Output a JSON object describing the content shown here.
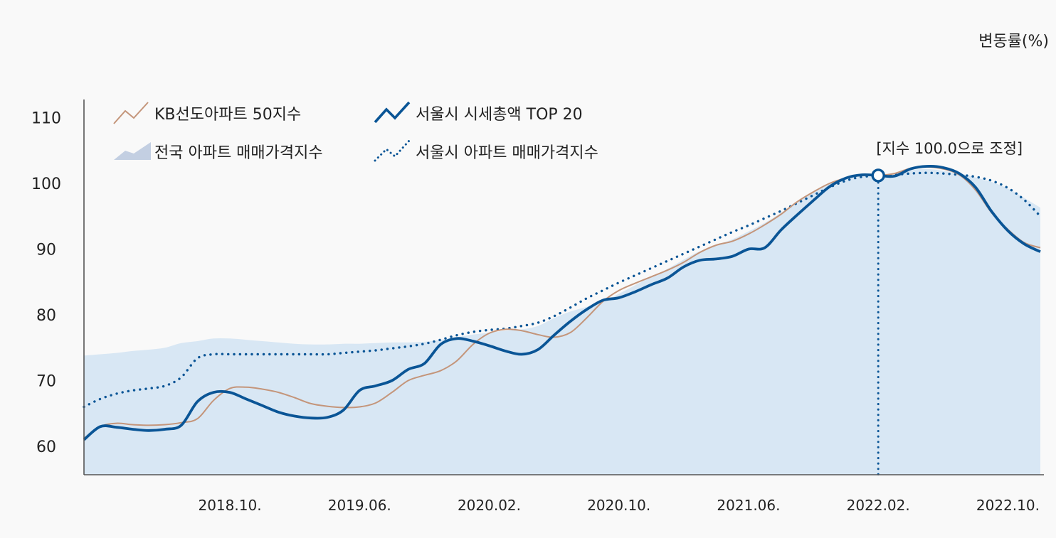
{
  "unit_label": "변동률(%)",
  "annotation": "[지수 100.0으로 조정]",
  "chart_data": {
    "type": "line",
    "x_tick_labels": [
      "2018.10.",
      "2019.06.",
      "2020.02.",
      "2020.10.",
      "2021.06.",
      "2022.02.",
      "2022.10."
    ],
    "y_ticks": [
      60,
      70,
      80,
      90,
      100,
      110
    ],
    "ylim": [
      55,
      112
    ],
    "x_range_months": [
      "2018.01.",
      "2022.12."
    ],
    "legend_position": "top-left",
    "colors": {
      "kb50": "#c4957a",
      "top20": "#0a5596",
      "national_area": "#d8e7f4",
      "seoul_dotted": "#0a5596",
      "axis": "#555555"
    },
    "series": [
      {
        "name": "KB선도아파트 50지수",
        "style": "thin-line",
        "x": [
          0,
          1,
          2,
          3,
          4,
          5,
          6,
          7,
          8,
          9,
          10,
          11,
          12,
          13,
          14,
          15,
          16,
          17,
          18,
          19,
          20,
          21,
          22,
          23,
          24,
          25,
          26,
          27,
          28,
          29,
          30,
          31,
          32,
          33,
          34,
          35,
          36,
          37,
          38,
          39,
          40,
          41,
          42,
          43,
          44,
          45,
          46,
          47,
          48,
          49,
          50,
          51,
          52,
          53,
          54,
          55,
          56,
          57,
          58,
          59
        ],
        "values": [
          61.2,
          63,
          63.5,
          63.3,
          63.2,
          63.3,
          63.6,
          64.2,
          67,
          68.8,
          69,
          68.7,
          68.2,
          67.4,
          66.5,
          66.1,
          65.9,
          66,
          66.6,
          68.2,
          70,
          70.8,
          71.5,
          73,
          75.5,
          77.2,
          77.8,
          77.6,
          77,
          76.6,
          77.3,
          79.5,
          82,
          83.7,
          84.8,
          85.8,
          86.8,
          88,
          89.5,
          90.6,
          91.2,
          92.3,
          93.7,
          95.3,
          97.2,
          98.7,
          100,
          100.8,
          101.2,
          101.2,
          101.5,
          102.3,
          102.5,
          102.2,
          101.3,
          99,
          95.5,
          93,
          91,
          90.2
        ]
      },
      {
        "name": "서울시 시세총액 TOP 20",
        "style": "thick-line",
        "x": [
          0,
          1,
          2,
          3,
          4,
          5,
          6,
          7,
          8,
          9,
          10,
          11,
          12,
          13,
          14,
          15,
          16,
          17,
          18,
          19,
          20,
          21,
          22,
          23,
          24,
          25,
          26,
          27,
          28,
          29,
          30,
          31,
          32,
          33,
          34,
          35,
          36,
          37,
          38,
          39,
          40,
          41,
          42,
          43,
          44,
          45,
          46,
          47,
          48,
          49,
          50,
          51,
          52,
          53,
          54,
          55,
          56,
          57,
          58,
          59
        ],
        "values": [
          61,
          63,
          62.9,
          62.6,
          62.4,
          62.6,
          63.2,
          66.8,
          68.2,
          68.2,
          67.2,
          66.2,
          65.2,
          64.6,
          64.3,
          64.4,
          65.5,
          68.5,
          69.2,
          70,
          71.7,
          72.6,
          75.5,
          76.4,
          76,
          75.3,
          74.5,
          74,
          74.7,
          76.9,
          79,
          80.8,
          82.2,
          82.6,
          83.5,
          84.6,
          85.6,
          87.3,
          88.3,
          88.5,
          88.9,
          90,
          90.2,
          92.9,
          95.2,
          97.4,
          99.5,
          100.8,
          101.3,
          101.2,
          101.1,
          102.2,
          102.6,
          102.4,
          101.5,
          99.4,
          95.7,
          92.8,
          90.8,
          89.6
        ]
      },
      {
        "name": "전국 아파트 매매가격지수",
        "style": "filled-area",
        "x": [
          0,
          1,
          2,
          3,
          4,
          5,
          6,
          7,
          8,
          9,
          10,
          11,
          12,
          13,
          14,
          15,
          16,
          17,
          18,
          19,
          20,
          21,
          22,
          23,
          24,
          25,
          26,
          27,
          28,
          29,
          30,
          31,
          32,
          33,
          34,
          35,
          36,
          37,
          38,
          39,
          40,
          41,
          42,
          43,
          44,
          45,
          46,
          47,
          48,
          49,
          50,
          51,
          52,
          53,
          54,
          55,
          56,
          57,
          58,
          59
        ],
        "values": [
          73.8,
          74,
          74.2,
          74.5,
          74.7,
          75,
          75.7,
          76,
          76.4,
          76.4,
          76.2,
          76,
          75.8,
          75.6,
          75.5,
          75.5,
          75.6,
          75.6,
          75.7,
          75.8,
          75.8,
          75.9,
          76.2,
          76.6,
          77,
          77.3,
          77.6,
          77.8,
          78.3,
          79.5,
          80.5,
          81.2,
          82,
          83.2,
          84.5,
          85.8,
          87,
          88.4,
          89.7,
          90.6,
          91.5,
          92.7,
          94,
          95.5,
          97.2,
          98.8,
          100,
          100.8,
          101.3,
          101.2,
          101.6,
          102,
          102.2,
          101.9,
          101.5,
          100.9,
          100.2,
          99.2,
          97.8,
          96.3
        ]
      },
      {
        "name": "서울시 아파트 매매가격지수",
        "style": "dotted-line",
        "x": [
          0,
          1,
          2,
          3,
          4,
          5,
          6,
          7,
          8,
          9,
          10,
          11,
          12,
          13,
          14,
          15,
          16,
          17,
          18,
          19,
          20,
          21,
          22,
          23,
          24,
          25,
          26,
          27,
          28,
          29,
          30,
          31,
          32,
          33,
          34,
          35,
          36,
          37,
          38,
          39,
          40,
          41,
          42,
          43,
          44,
          45,
          46,
          47,
          48,
          49,
          50,
          51,
          52,
          53,
          54,
          55,
          56,
          57,
          58,
          59
        ],
        "values": [
          66,
          67.2,
          68,
          68.5,
          68.8,
          69.2,
          70.5,
          73.4,
          74,
          74,
          74,
          74,
          74,
          74,
          74,
          74,
          74.2,
          74.4,
          74.6,
          74.9,
          75.2,
          75.6,
          76.2,
          76.9,
          77.4,
          77.7,
          77.9,
          78.3,
          78.8,
          79.8,
          81.1,
          82.5,
          83.7,
          84.9,
          86,
          87.1,
          88.2,
          89.3,
          90.4,
          91.5,
          92.6,
          93.6,
          94.7,
          95.8,
          97,
          98.2,
          99.4,
          100.4,
          101,
          101.1,
          101.3,
          101.5,
          101.6,
          101.5,
          101.3,
          101,
          100.4,
          99.3,
          97.5,
          95
        ]
      }
    ],
    "highlight_point": {
      "x": 49,
      "y": 101.2
    }
  }
}
